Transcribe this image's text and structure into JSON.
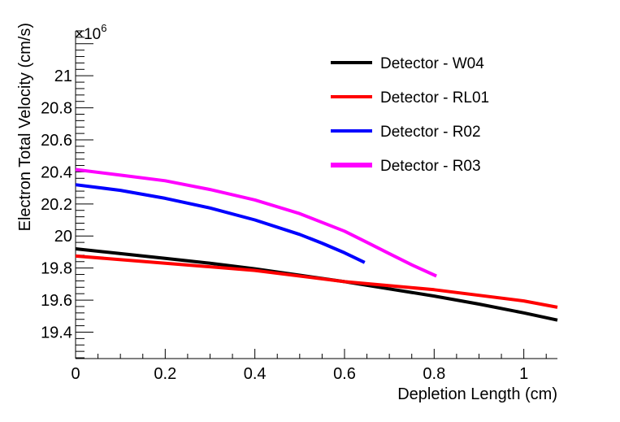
{
  "chart_data": {
    "type": "line",
    "title": "",
    "xlabel": "Depletion Length (cm)",
    "ylabel": "Electron Total Velocity (cm/s)",
    "y_multiplier": "×10",
    "y_multiplier_exp": "6",
    "xlim": [
      0,
      1.075
    ],
    "ylim": [
      19.235,
      21.28
    ],
    "x_ticks": [
      {
        "value": 0,
        "label": "0"
      },
      {
        "value": 0.2,
        "label": "0.2"
      },
      {
        "value": 0.4,
        "label": "0.4"
      },
      {
        "value": 0.6,
        "label": "0.6"
      },
      {
        "value": 0.8,
        "label": "0.8"
      },
      {
        "value": 1.0,
        "label": "1"
      }
    ],
    "y_ticks": [
      {
        "value": 19.4,
        "label": "19.4"
      },
      {
        "value": 19.6,
        "label": "19.6"
      },
      {
        "value": 19.8,
        "label": "19.8"
      },
      {
        "value": 20.0,
        "label": "20"
      },
      {
        "value": 20.2,
        "label": "20.2"
      },
      {
        "value": 20.4,
        "label": "20.4"
      },
      {
        "value": 20.6,
        "label": "20.6"
      },
      {
        "value": 20.8,
        "label": "20.8"
      },
      {
        "value": 21.0,
        "label": "21"
      }
    ],
    "legend_position": "top-right",
    "grid": false,
    "series": [
      {
        "name": "Detector - W04",
        "color": "#000000",
        "x": [
          0,
          0.1,
          0.2,
          0.3,
          0.4,
          0.5,
          0.6,
          0.7,
          0.8,
          0.9,
          1.0,
          1.075
        ],
        "y": [
          19.92,
          19.89,
          19.86,
          19.83,
          19.795,
          19.755,
          19.715,
          19.67,
          19.625,
          19.575,
          19.52,
          19.475
        ]
      },
      {
        "name": "Detector - RL01",
        "color": "#ff0000",
        "x": [
          0,
          0.2,
          0.4,
          0.6,
          0.8,
          1.0,
          1.075
        ],
        "y": [
          19.875,
          19.83,
          19.785,
          19.715,
          19.665,
          19.595,
          19.555
        ]
      },
      {
        "name": "Detector - R02",
        "color": "#0000ff",
        "x": [
          0,
          0.1,
          0.2,
          0.3,
          0.4,
          0.5,
          0.55,
          0.6,
          0.645
        ],
        "y": [
          20.32,
          20.285,
          20.235,
          20.175,
          20.1,
          20.01,
          19.955,
          19.895,
          19.835
        ]
      },
      {
        "name": "Detector - R03",
        "color": "#ff00ff",
        "x": [
          0,
          0.1,
          0.2,
          0.3,
          0.4,
          0.5,
          0.6,
          0.65,
          0.7,
          0.75,
          0.805
        ],
        "y": [
          20.415,
          20.38,
          20.345,
          20.29,
          20.225,
          20.14,
          20.03,
          19.96,
          19.89,
          19.82,
          19.75
        ]
      }
    ]
  }
}
